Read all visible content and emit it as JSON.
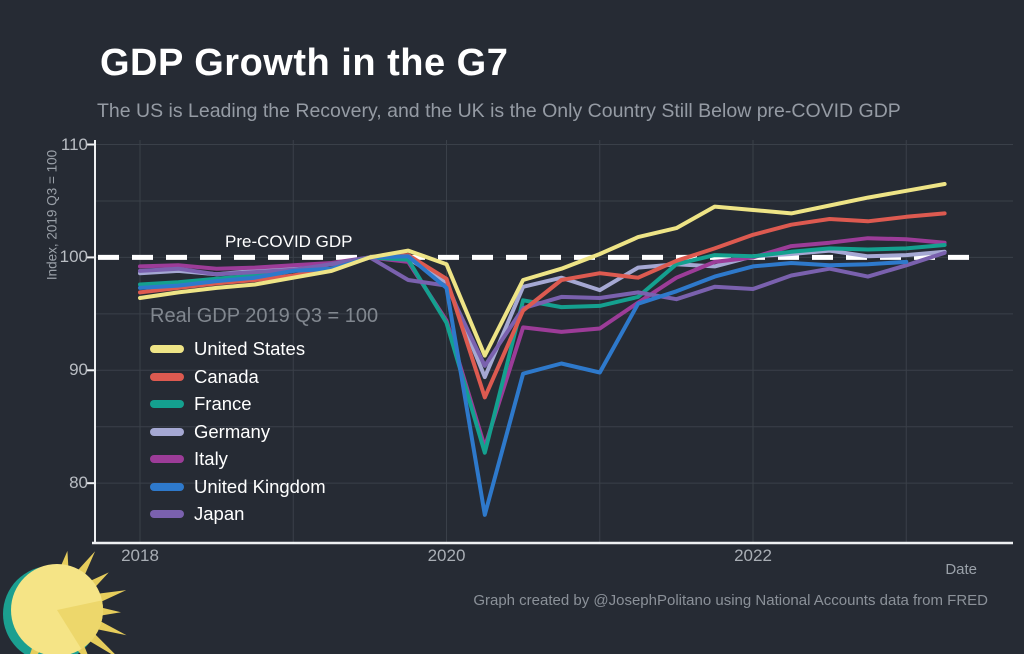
{
  "page": {
    "background": "#262b34",
    "footer": "Graph created by @JosephPolitano using National Accounts data from FRED"
  },
  "chart_data": {
    "type": "line",
    "title": "GDP Growth in the G7",
    "subtitle": "The US is Leading the Recovery, and the UK is the Only Country Still Below pre-COVID GDP",
    "xlabel": "Date",
    "ylabel": "Index, 2019 Q3 = 100",
    "legend_title": "Real GDP 2019 Q3 = 100",
    "legend_position": "middle-left",
    "grid": true,
    "annotation": {
      "label": "Pre-COVID GDP",
      "y": 100
    },
    "reference_line": {
      "y": 100,
      "style": "dashed",
      "color": "#ffffff"
    },
    "x_start": 2018.0,
    "x_step": 0.25,
    "x_unit": "quarter",
    "xlim": [
      2017.71,
      2023.7
    ],
    "ylim": [
      74.7,
      110.4
    ],
    "x_gridlines": [
      2018,
      2019,
      2020,
      2021,
      2022,
      2023
    ],
    "x_ticks": [
      {
        "t": 2018,
        "label": "2018"
      },
      {
        "t": 2020,
        "label": "2020"
      },
      {
        "t": 2022,
        "label": "2022"
      }
    ],
    "y_gridlines": [
      80,
      85,
      90,
      95,
      100,
      105,
      110
    ],
    "y_ticks": [
      {
        "v": 80,
        "label": "80"
      },
      {
        "v": 90,
        "label": "90"
      },
      {
        "v": 100,
        "label": "100"
      },
      {
        "v": 110,
        "label": "110"
      }
    ],
    "series": [
      {
        "name": "United States",
        "color": "#eee486",
        "values": [
          96.4,
          96.9,
          97.3,
          97.6,
          98.2,
          98.8,
          100.0,
          100.6,
          99.4,
          91.3,
          98.0,
          99.0,
          100.3,
          101.8,
          102.6,
          104.5,
          104.2,
          103.9,
          104.6,
          105.3,
          105.9,
          106.5
        ]
      },
      {
        "name": "Canada",
        "color": "#dd5a50",
        "values": [
          96.9,
          97.3,
          97.7,
          98.0,
          98.4,
          99.0,
          100.0,
          100.2,
          98.1,
          87.6,
          95.3,
          98.0,
          98.6,
          98.2,
          99.7,
          100.8,
          102.0,
          102.9,
          103.4,
          103.2,
          103.6,
          103.9
        ]
      },
      {
        "name": "France",
        "color": "#14a08f",
        "values": [
          97.6,
          97.8,
          98.1,
          98.4,
          98.8,
          99.4,
          100.0,
          99.8,
          94.2,
          82.7,
          96.2,
          95.6,
          95.7,
          96.5,
          99.4,
          100.2,
          100.1,
          100.5,
          100.8,
          100.7,
          100.8,
          101.1
        ]
      },
      {
        "name": "Germany",
        "color": "#a5a8d3",
        "values": [
          98.6,
          98.8,
          98.5,
          98.8,
          99.2,
          98.9,
          100.0,
          99.9,
          97.8,
          89.4,
          97.4,
          98.2,
          97.1,
          99.1,
          99.4,
          99.2,
          100.1,
          100.3,
          100.6,
          100.1,
          100.2,
          100.5
        ]
      },
      {
        "name": "Italy",
        "color": "#9c3c98",
        "values": [
          99.2,
          99.3,
          99.0,
          99.1,
          99.3,
          99.5,
          100.0,
          99.6,
          94.4,
          83.2,
          93.8,
          93.4,
          93.7,
          96.0,
          98.2,
          99.6,
          100.0,
          101.0,
          101.3,
          101.7,
          101.6,
          101.3
        ]
      },
      {
        "name": "United Kingdom",
        "color": "#2e79cb",
        "values": [
          97.3,
          97.5,
          97.9,
          98.2,
          98.8,
          99.0,
          100.0,
          100.1,
          97.3,
          77.2,
          89.7,
          90.6,
          89.8,
          95.9,
          97.0,
          98.3,
          99.2,
          99.5,
          99.3,
          99.4,
          99.6
        ]
      },
      {
        "name": "Japan",
        "color": "#7a61ae",
        "values": [
          98.8,
          99.0,
          98.5,
          98.7,
          98.9,
          99.4,
          100.0,
          98.0,
          97.5,
          90.4,
          95.5,
          96.5,
          96.4,
          96.9,
          96.3,
          97.4,
          97.2,
          98.4,
          99.0,
          98.3,
          99.3,
          100.4
        ]
      }
    ]
  }
}
